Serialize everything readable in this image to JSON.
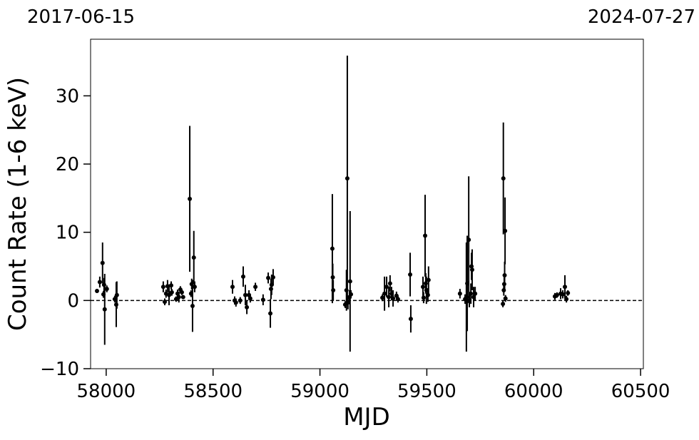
{
  "chart_data": {
    "type": "errorbar",
    "top_labels": [
      "2017-06-15",
      "2024-07-27"
    ],
    "x_label": "MJD",
    "y_label": "Count Rate (1-6 keV)",
    "xlim": [
      57927,
      60513
    ],
    "ylim": [
      -10,
      38.3
    ],
    "xticks": [
      58000,
      58500,
      59000,
      59500,
      60000,
      60500
    ],
    "yticks": [
      {
        "value": -10,
        "label": "−10"
      },
      0,
      10,
      20,
      30
    ],
    "reference_line": 0,
    "color": "#000000",
    "x": [
      57957,
      57970,
      57983,
      57987,
      57990,
      57993,
      58003,
      58040,
      58047,
      58050,
      58267,
      58274,
      58280,
      58287,
      58294,
      58304,
      58307,
      58327,
      58334,
      58340,
      58347,
      58354,
      58360,
      58391,
      58397,
      58400,
      58404,
      58410,
      58414,
      58591,
      58601,
      58607,
      58627,
      58641,
      58651,
      58658,
      58668,
      58674,
      58698,
      58734,
      58758,
      58768,
      58771,
      58774,
      58781,
      59058,
      59060,
      59062,
      59118,
      59124,
      59128,
      59131,
      59138,
      59141,
      59145,
      59292,
      59302,
      59312,
      59322,
      59328,
      59335,
      59342,
      59358,
      59365,
      59422,
      59425,
      59482,
      59485,
      59492,
      59495,
      59498,
      59505,
      59508,
      59655,
      59679,
      59685,
      59689,
      59696,
      59699,
      59706,
      59709,
      59712,
      59719,
      59726,
      59856,
      59858,
      59860,
      59862,
      59864,
      59866,
      59868,
      60099,
      60109,
      60126,
      60136,
      60146,
      60153,
      60160
    ],
    "y": [
      1.4,
      2.7,
      5.5,
      0.9,
      2.3,
      -1.3,
      1.7,
      0.2,
      -0.6,
      0.8,
      2.0,
      -0.2,
      1.0,
      2.1,
      0.8,
      2.2,
      1.2,
      0.2,
      1.0,
      0.5,
      1.6,
      1.2,
      0.5,
      14.9,
      1.0,
      2.4,
      -0.8,
      6.3,
      2.0,
      2.0,
      0.0,
      -0.3,
      0.0,
      3.5,
      0.8,
      -1.0,
      0.8,
      0.3,
      2.0,
      0.1,
      3.3,
      -1.9,
      1.7,
      2.3,
      3.4,
      7.6,
      3.4,
      1.5,
      -0.6,
      1.5,
      17.9,
      -0.3,
      0.5,
      2.8,
      0.9,
      0.4,
      1.0,
      2.0,
      0.5,
      2.5,
      1.0,
      0.3,
      0.7,
      0.2,
      3.8,
      -2.7,
      2.0,
      0.4,
      9.5,
      2.5,
      1.5,
      0.8,
      3.0,
      1.0,
      0.2,
      0.5,
      2.5,
      8.9,
      0.0,
      1.0,
      5.0,
      4.5,
      0.5,
      1.0,
      -0.5,
      17.9,
      1.5,
      2.4,
      3.7,
      10.2,
      0.3,
      0.6,
      0.8,
      1.0,
      0.9,
      2.0,
      0.2,
      1.1
    ],
    "err": [
      0.3,
      0.8,
      3,
      0.5,
      1,
      5.2,
      0.5,
      0.5,
      3.3,
      2,
      0.8,
      0.5,
      0.6,
      0.9,
      1.5,
      0.6,
      0.5,
      0.4,
      0.6,
      0.8,
      0.5,
      0.4,
      0.3,
      10.7,
      0.5,
      0.8,
      3.8,
      3.9,
      0.8,
      1,
      0.6,
      0.6,
      0.5,
      1.5,
      1.5,
      1,
      0.7,
      0.6,
      0.6,
      0.8,
      0.8,
      2.1,
      1.5,
      1.5,
      1.2,
      8,
      2,
      1.5,
      0.5,
      3,
      18,
      1,
      1,
      10.3,
      0.6,
      0.5,
      2.5,
      1.5,
      1.5,
      1.2,
      1,
      1.2,
      0.6,
      0.5,
      3.2,
      2,
      1.5,
      0.8,
      6,
      1.5,
      2,
      1,
      2,
      0.7,
      0.7,
      8,
      7,
      9.3,
      1,
      1.5,
      2,
      3,
      1.5,
      1,
      0.5,
      8.2,
      0.8,
      1,
      2,
      4.9,
      0.5,
      0.5,
      0.4,
      0.8,
      0.6,
      1.7,
      0.5,
      0.4
    ]
  }
}
